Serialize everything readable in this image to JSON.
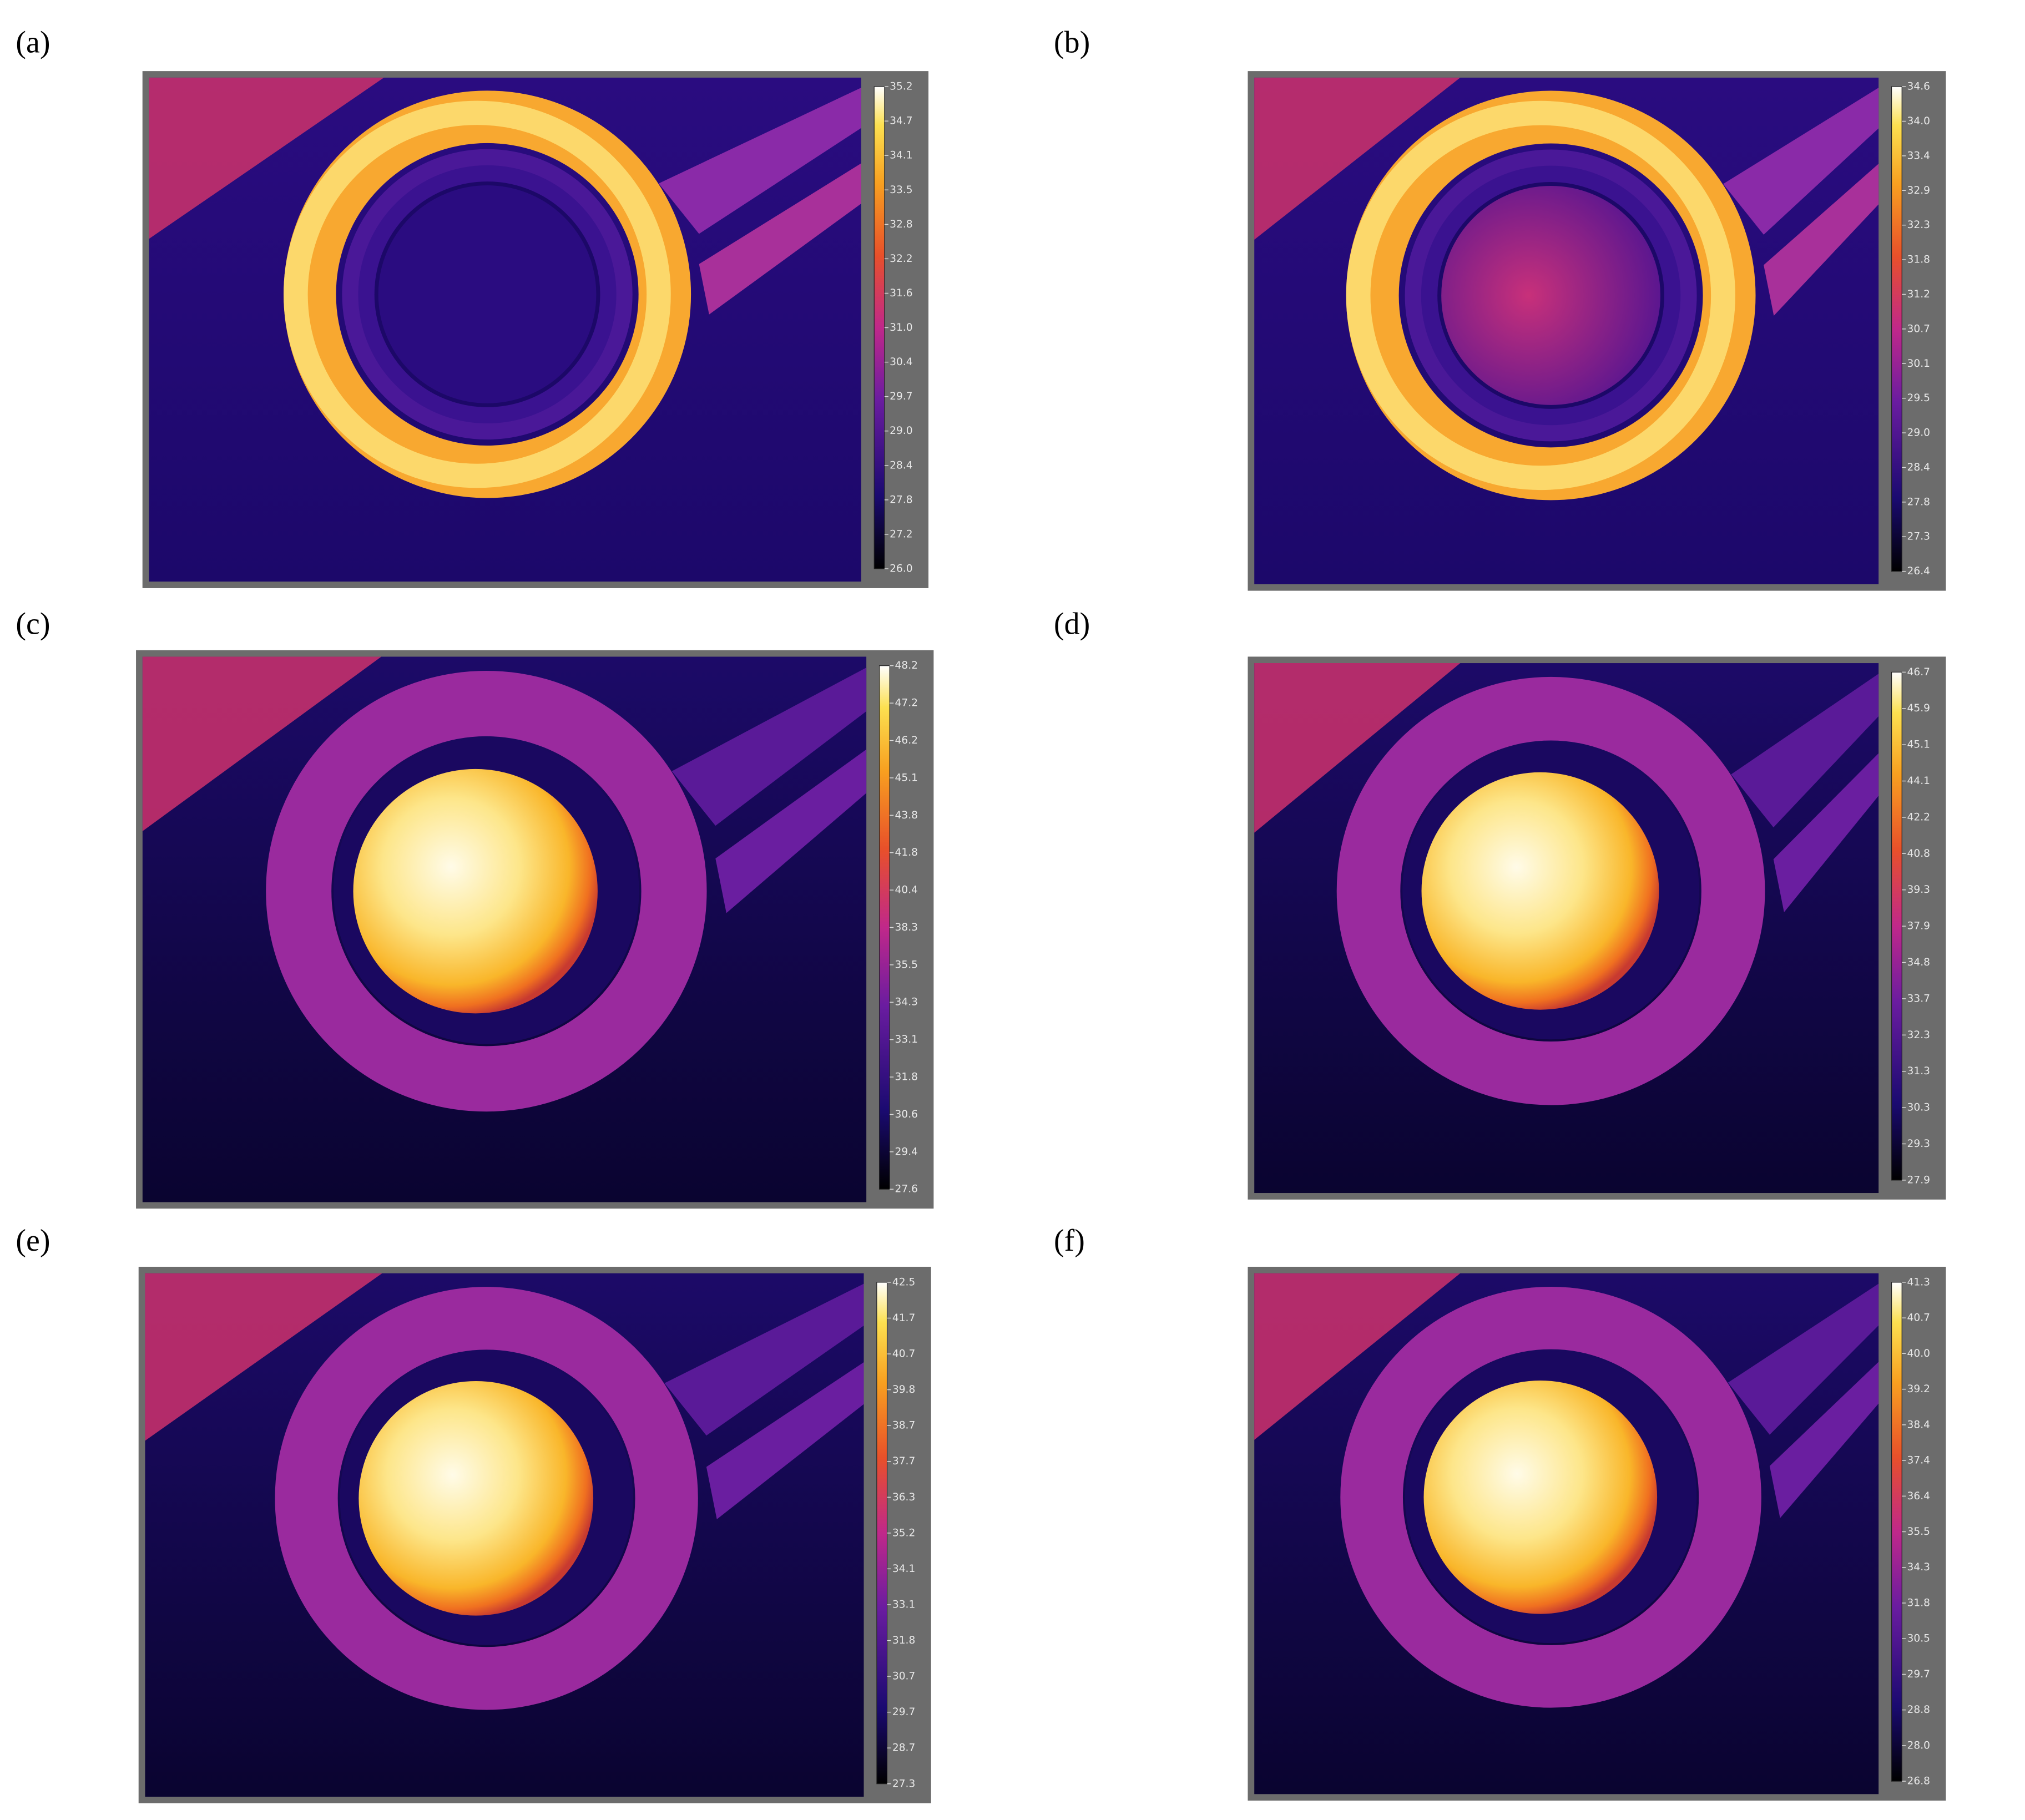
{
  "panels": [
    {
      "label": "(a)",
      "ticks": [
        "35.2",
        "34.7",
        "34.1",
        "33.5",
        "32.8",
        "32.2",
        "31.6",
        "31.0",
        "30.4",
        "29.7",
        "29.0",
        "28.4",
        "27.8",
        "27.2",
        "26.0"
      ]
    },
    {
      "label": "(b)",
      "ticks": [
        "34.6",
        "34.0",
        "33.4",
        "32.9",
        "32.3",
        "31.8",
        "31.2",
        "30.7",
        "30.1",
        "29.5",
        "29.0",
        "28.4",
        "27.8",
        "27.3",
        "26.4"
      ]
    },
    {
      "label": "(c)",
      "ticks": [
        "48.2",
        "47.2",
        "46.2",
        "45.1",
        "43.8",
        "41.8",
        "40.4",
        "38.3",
        "35.5",
        "34.3",
        "33.1",
        "31.8",
        "30.6",
        "29.4",
        "27.6"
      ]
    },
    {
      "label": "(d)",
      "ticks": [
        "46.7",
        "45.9",
        "45.1",
        "44.1",
        "42.2",
        "40.8",
        "39.3",
        "37.9",
        "34.8",
        "33.7",
        "32.3",
        "31.3",
        "30.3",
        "29.3",
        "27.9"
      ]
    },
    {
      "label": "(e)",
      "ticks": [
        "42.5",
        "41.7",
        "40.7",
        "39.8",
        "38.7",
        "37.7",
        "36.3",
        "35.2",
        "34.1",
        "33.1",
        "31.8",
        "30.7",
        "29.7",
        "28.7",
        "27.3"
      ]
    },
    {
      "label": "(f)",
      "ticks": [
        "41.3",
        "40.7",
        "40.0",
        "39.2",
        "38.4",
        "37.4",
        "36.4",
        "35.5",
        "34.3",
        "31.8",
        "30.5",
        "29.7",
        "28.8",
        "28.0",
        "26.8"
      ]
    }
  ]
}
